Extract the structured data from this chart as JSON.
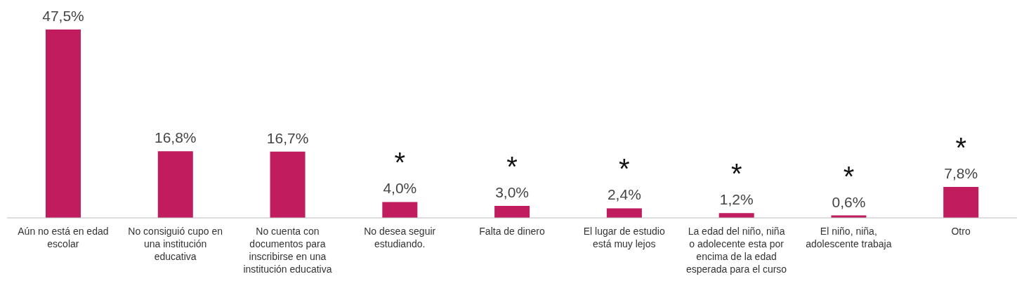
{
  "chart_data": {
    "type": "bar",
    "color": "#c01c5e",
    "categories": [
      "Aún no está en edad escolar",
      "No consiguió cupo en una institución educativa",
      "No cuenta con documentos para inscribirse en una institución educativa",
      "No desea seguir estudiando.",
      "Falta de dinero",
      "El lugar de estudio está muy lejos",
      "La edad del niño, niña o adolecente esta por encima de la edad esperada para el curso",
      "El niño, niña, adolescente trabaja",
      "Otro"
    ],
    "values": [
      47.5,
      16.8,
      16.7,
      4.0,
      3.0,
      2.4,
      1.2,
      0.6,
      7.8
    ],
    "value_labels": [
      "47,5%",
      "16,8%",
      "16,7%",
      "4,0%",
      "3,0%",
      "2,4%",
      "1,2%",
      "0,6%",
      "7,8%"
    ],
    "annotations": [
      {
        "text": "*",
        "x": "No desea seguir estudiando.",
        "y": 4.0
      },
      {
        "text": "*",
        "x": "Falta de dinero",
        "y": 3.0
      },
      {
        "text": "*",
        "x": "El lugar de estudio está muy lejos",
        "y": 2.4
      },
      {
        "text": "*",
        "x": "La edad del niño, niña o adolecente esta por encima de la edad esperada para el curso",
        "y": 1.2
      },
      {
        "text": "*",
        "x": "El niño, niña, adolescente trabaja",
        "y": 0.6
      },
      {
        "text": "*",
        "x": "Otro",
        "y": 7.8
      }
    ]
  }
}
